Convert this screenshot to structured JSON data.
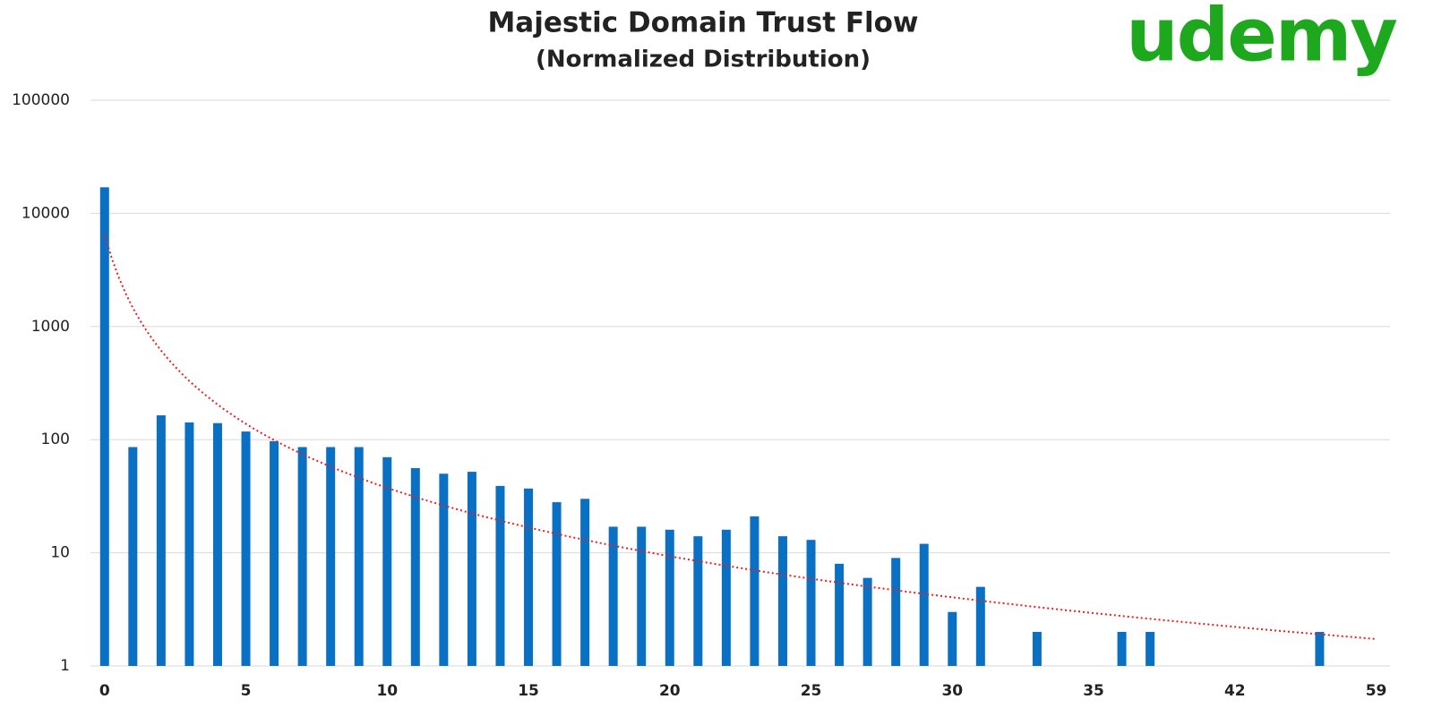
{
  "chart_data": {
    "type": "bar",
    "title": "Majestic Domain Trust Flow",
    "subtitle": "(Normalized Distribution)",
    "categories": [
      "0",
      null,
      null,
      null,
      null,
      "5",
      null,
      null,
      null,
      null,
      "10",
      null,
      null,
      null,
      null,
      "15",
      null,
      null,
      null,
      null,
      "20",
      null,
      null,
      null,
      null,
      "25",
      null,
      null,
      null,
      null,
      "30",
      null,
      null,
      null,
      null,
      "35",
      null,
      null,
      null,
      null,
      "42",
      null,
      null,
      null,
      null,
      "59"
    ],
    "values": [
      17000,
      86,
      164,
      142,
      140,
      118,
      97,
      86,
      86,
      86,
      70,
      56,
      50,
      52,
      39,
      37,
      28,
      30,
      17,
      17,
      16,
      14,
      16,
      21,
      14,
      13,
      8,
      6,
      9,
      12,
      3,
      5,
      null,
      2,
      null,
      null,
      2,
      2,
      null,
      null,
      null,
      null,
      null,
      2,
      null,
      null
    ],
    "color": "#0a70c4",
    "log": true,
    "ylim": [
      1,
      100000
    ],
    "yticks": [
      1,
      10,
      100,
      1000,
      10000,
      100000
    ],
    "grid": true
  },
  "logo": "udemy"
}
